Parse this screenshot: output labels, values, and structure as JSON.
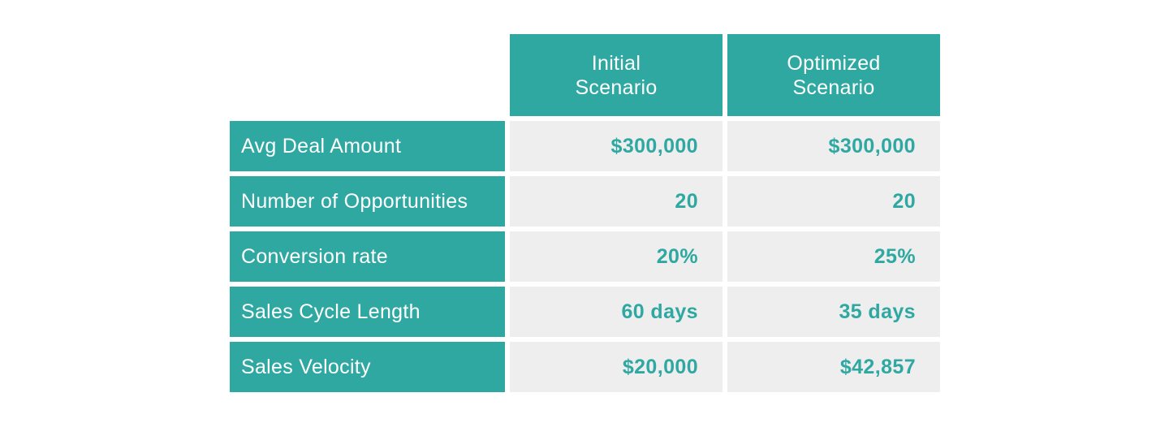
{
  "colors": {
    "teal": "#2FA8A2",
    "cell_background": "#EEEEEE",
    "header_text": "#FFFFFF",
    "value_text": "#2FA8A2",
    "page_background": "#FFFFFF"
  },
  "table": {
    "column_headers": [
      "Initial\nScenario",
      "Optimized\nScenario"
    ],
    "rows": [
      {
        "label": "Avg Deal Amount",
        "values": [
          "$300,000",
          "$300,000"
        ]
      },
      {
        "label": "Number of Opportunities",
        "values": [
          "20",
          "20"
        ]
      },
      {
        "label": "Conversion rate",
        "values": [
          "20%",
          "25%"
        ]
      },
      {
        "label": "Sales Cycle Length",
        "values": [
          "60 days",
          "35 days"
        ]
      },
      {
        "label": "Sales Velocity",
        "values": [
          "$20,000",
          "$42,857"
        ]
      }
    ]
  },
  "chart_data": {
    "type": "table",
    "title": "",
    "categories": [
      "Avg Deal Amount",
      "Number of Opportunities",
      "Conversion rate",
      "Sales Cycle Length",
      "Sales Velocity"
    ],
    "series": [
      {
        "name": "Initial Scenario",
        "values": [
          "$300,000",
          "20",
          "20%",
          "60 days",
          "$20,000"
        ]
      },
      {
        "name": "Optimized Scenario",
        "values": [
          "$300,000",
          "20",
          "25%",
          "35 days",
          "$42,857"
        ]
      }
    ],
    "layout_hints": {
      "header_position": "top",
      "row_labels_position": "left",
      "value_alignment": "right",
      "grid": "white-gaps-between-cells"
    }
  }
}
